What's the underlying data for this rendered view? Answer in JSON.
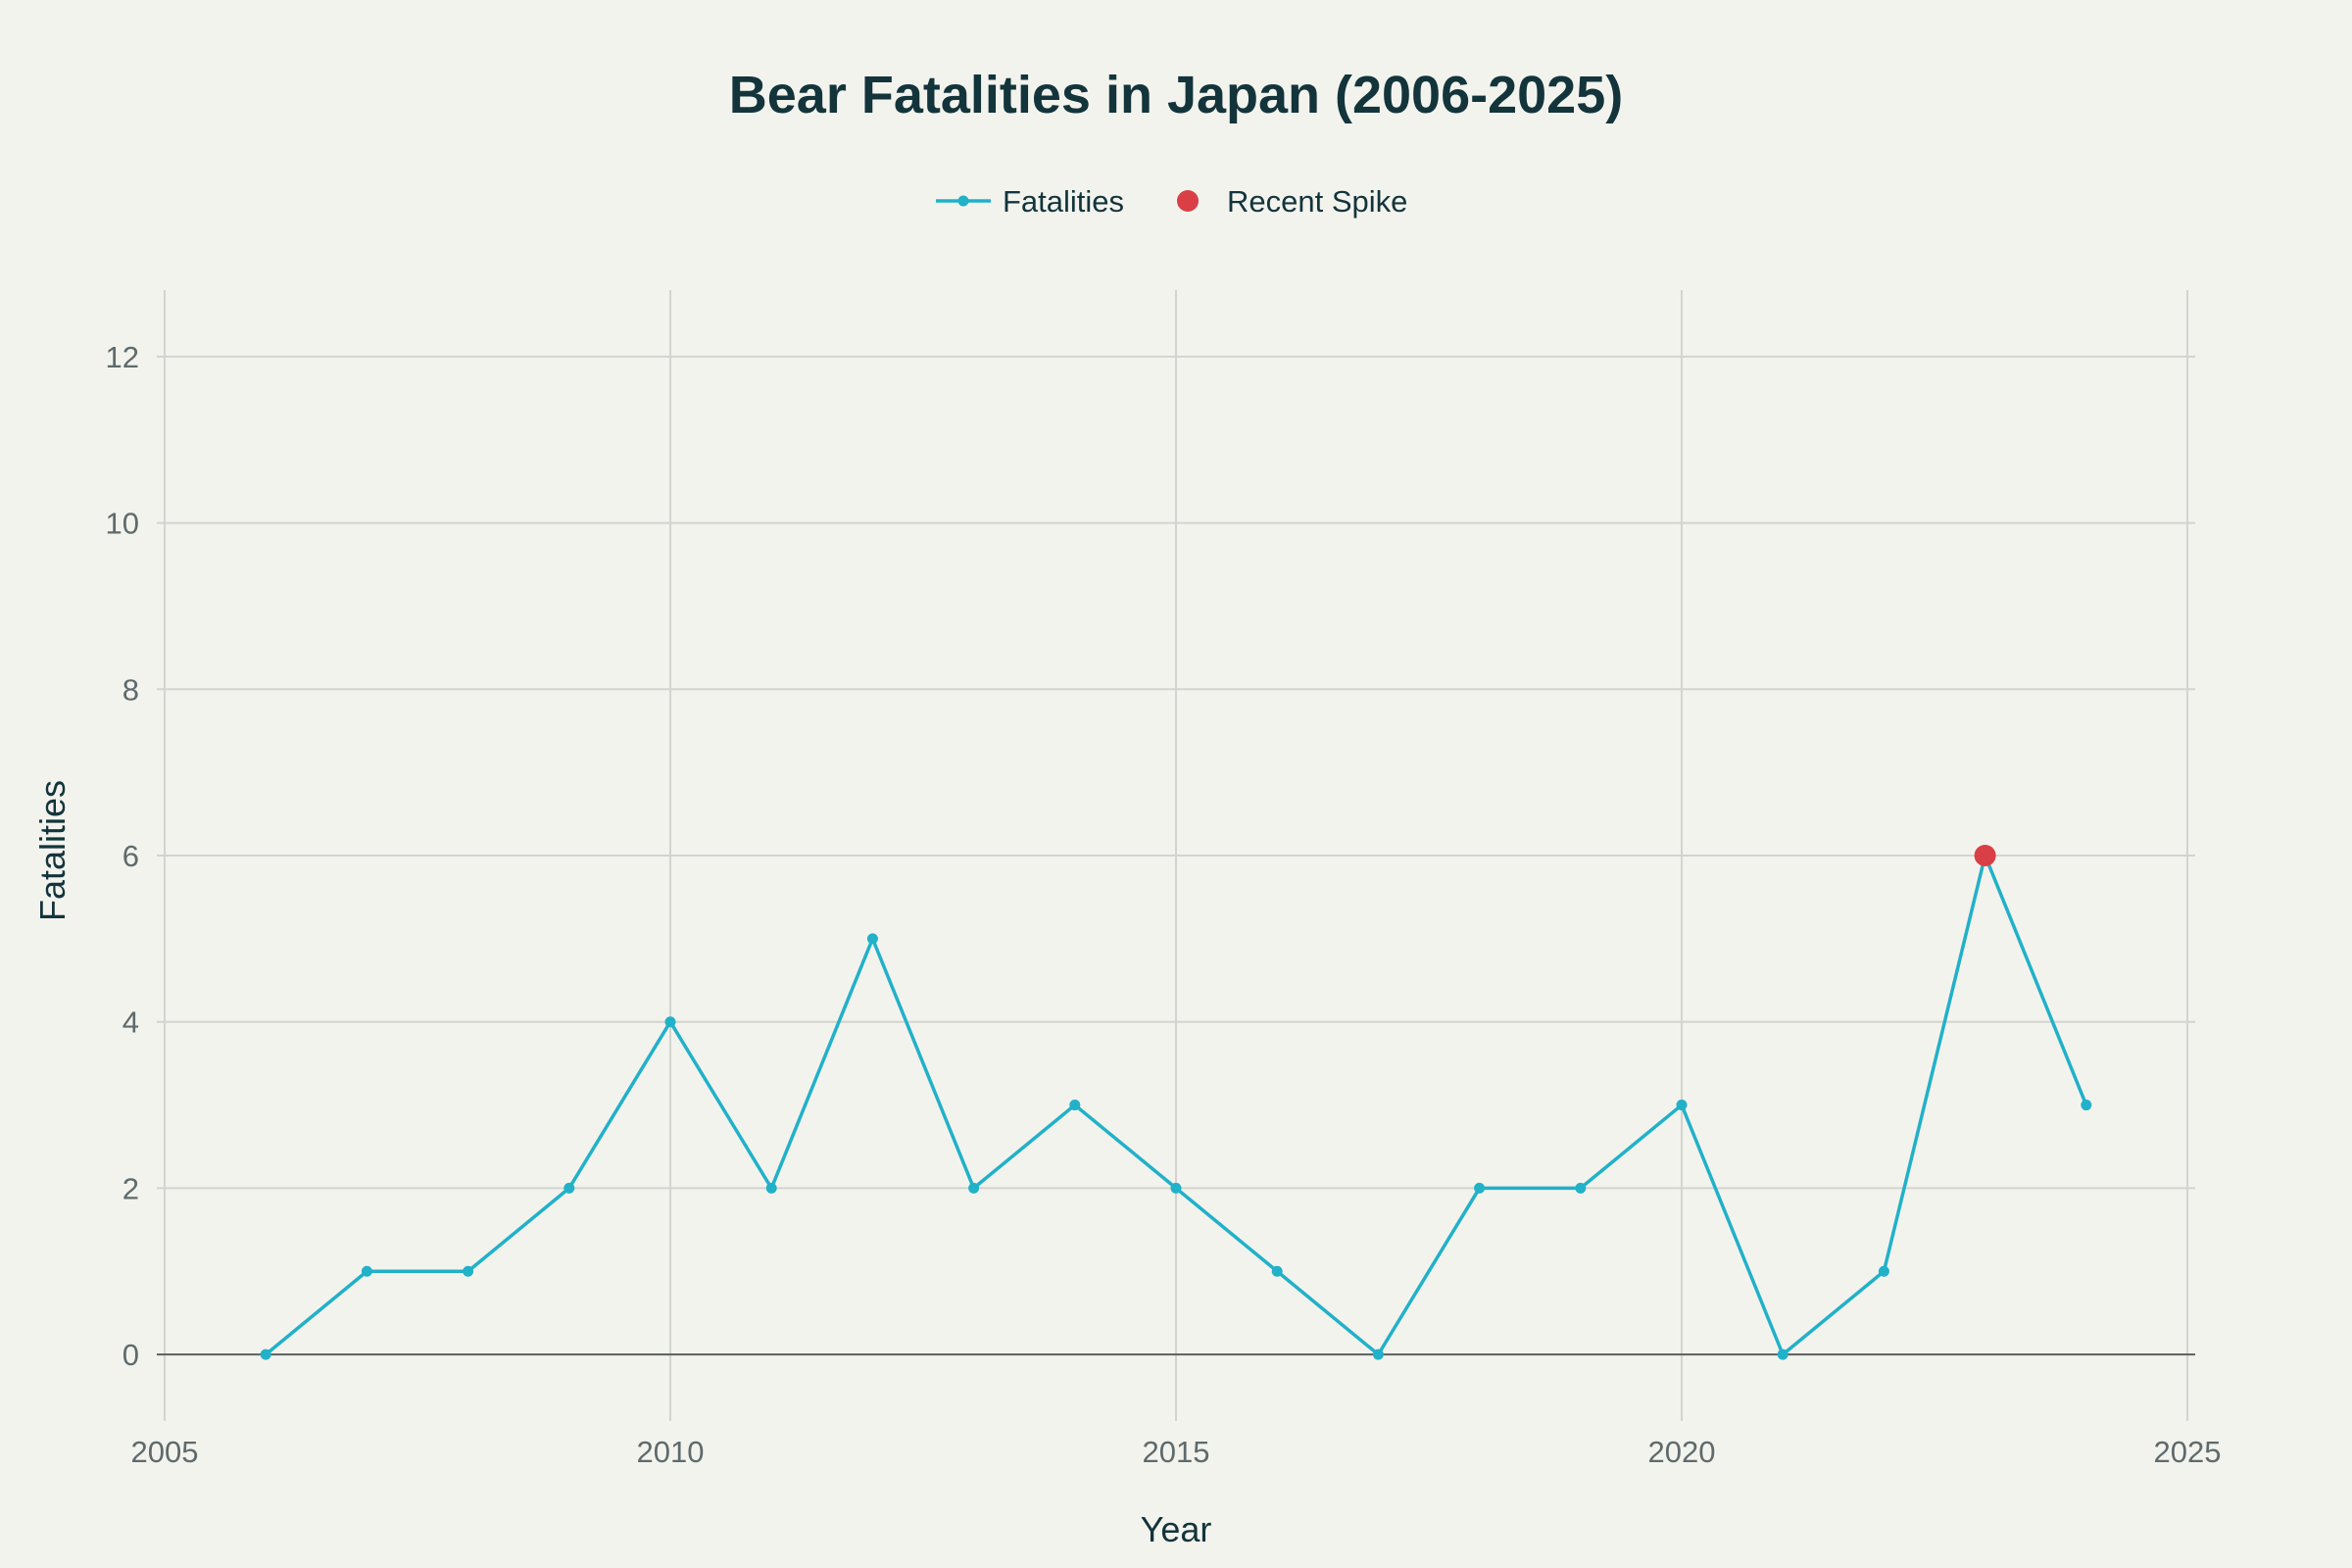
{
  "chart_data": {
    "type": "line",
    "title": "Bear Fatalities in Japan (2006-2025)",
    "xlabel": "Year",
    "ylabel": "Fatalities",
    "xlim": [
      2005,
      2025
    ],
    "ylim": [
      -0.8,
      12.8
    ],
    "x_ticks": [
      2005,
      2010,
      2015,
      2020,
      2025
    ],
    "y_ticks": [
      0,
      2,
      4,
      6,
      8,
      10,
      12
    ],
    "grid": true,
    "legend": "top-center",
    "series": [
      {
        "name": "Fatalities",
        "color": "#21b1c9",
        "mode": "lines+markers",
        "x": [
          2006,
          2007,
          2008,
          2009,
          2010,
          2011,
          2012,
          2013,
          2014,
          2015,
          2016,
          2017,
          2018,
          2019,
          2020,
          2021,
          2022,
          2023,
          2024
        ],
        "y": [
          0,
          1,
          1,
          2,
          4,
          2,
          5,
          2,
          3,
          2,
          1,
          0,
          2,
          2,
          3,
          0,
          1,
          6,
          3
        ]
      },
      {
        "name": "Recent Spike",
        "color": "#d93f45",
        "mode": "markers",
        "x": [
          2023
        ],
        "y": [
          6
        ]
      }
    ]
  }
}
